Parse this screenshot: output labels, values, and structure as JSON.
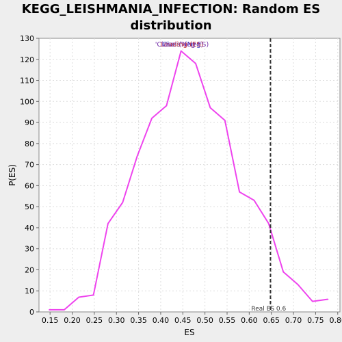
{
  "chart_data": {
    "type": "line",
    "title": "KEGG_LEISHMANIA_INFECTION: Random ES distribution",
    "xlabel": "ES",
    "ylabel": "P(ES)",
    "xlim": [
      0.125,
      0.805
    ],
    "ylim": [
      0,
      130
    ],
    "xticks": [
      0.15,
      0.2,
      0.25,
      0.3,
      0.35,
      0.4,
      0.45,
      0.5,
      0.55,
      0.6,
      0.65,
      0.7,
      0.75,
      0.8
    ],
    "xtick_labels": [
      "0.15",
      "0.20",
      "0.25",
      "0.30",
      "0.35",
      "0.40",
      "0.45",
      "0.50",
      "0.55",
      "0.60",
      "0.65",
      "0.70",
      "0.75",
      "0.80"
    ],
    "yticks": [
      0,
      10,
      20,
      30,
      40,
      50,
      60,
      70,
      80,
      90,
      100,
      110,
      120,
      130
    ],
    "grid": true,
    "series": [
      {
        "color": "#ee44ee",
        "x": [
          0.148,
          0.182,
          0.215,
          0.248,
          0.281,
          0.314,
          0.347,
          0.38,
          0.413,
          0.446,
          0.479,
          0.512,
          0.545,
          0.578,
          0.611,
          0.644,
          0.677,
          0.71,
          0.743,
          0.778
        ],
        "y": [
          1,
          1,
          7,
          8,
          42,
          52,
          74,
          92,
          98,
          124,
          118,
          97,
          91,
          57,
          53,
          42,
          19,
          13,
          5,
          6
        ]
      }
    ],
    "real_es": {
      "value": 0.648,
      "label": "Real ES 0.6",
      "color": "#333333"
    },
    "legend": {
      "position": "top-center",
      "entries": [
        {
          "text": "'Class' (Neg)",
          "color": "#3333bb"
        },
        {
          "text": "Leading (ES)",
          "color": "#cc3333"
        },
        {
          "text": "'Class' (Neg ES)",
          "color": "#7733aa"
        }
      ]
    }
  }
}
